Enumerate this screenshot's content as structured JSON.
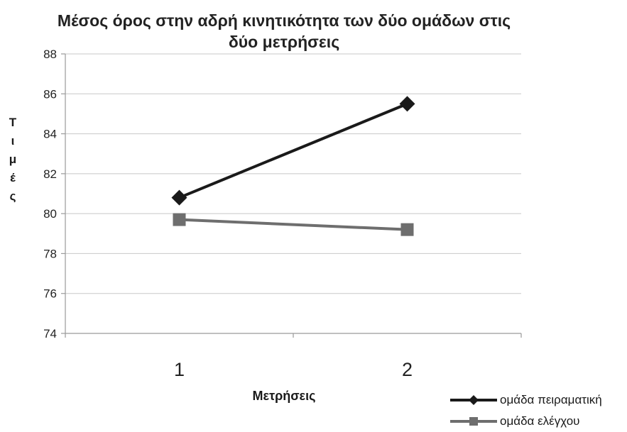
{
  "chart_data": {
    "type": "line",
    "title": "Μέσος όρος στην αδρή κινητικότητα των δύο ομάδων στις δύο μετρήσεις",
    "title_lines": [
      "Μέσος όρος στην αδρή κινητικότητα των δύο ομάδων στις",
      "δύο μετρήσεις"
    ],
    "xlabel": "Μετρήσεις",
    "ylabel": "Τιμές",
    "ylabel_chars": [
      "Τ",
      "ι",
      "μ",
      "έ",
      "ς"
    ],
    "categories": [
      "1",
      "2"
    ],
    "ylim": [
      74,
      88
    ],
    "yticks": [
      74,
      76,
      78,
      80,
      82,
      84,
      86,
      88
    ],
    "grid": true,
    "legend_position": "bottom-right",
    "series": [
      {
        "name": "ομάδα πειραματική",
        "values": [
          80.8,
          85.5
        ],
        "color": "#1a1a1a",
        "marker": "diamond"
      },
      {
        "name": "ομάδα ελέγχου",
        "values": [
          79.7,
          79.2
        ],
        "color": "#6e6e6e",
        "marker": "square"
      }
    ]
  }
}
